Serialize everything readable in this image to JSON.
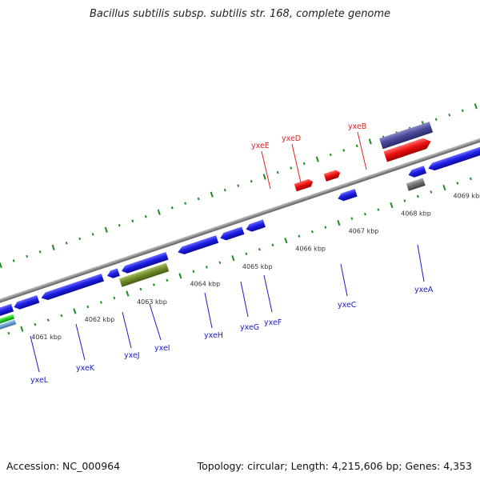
{
  "title": "Bacillus subtilis subsp. subtilis str. 168, complete genome",
  "footer": {
    "accession": "Accession: NC_000964",
    "topology": "Topology: circular; Length: 4,215,606 bp; Genes: 4,353"
  },
  "colors": {
    "backbone": "#8f8f8f",
    "ruler": "#1f8a1f",
    "forward_label": "#e02020",
    "reverse_label": "#1a1acc"
  },
  "ruler_labels": [
    "4061 kbp",
    "4062 kbp",
    "4063 kbp",
    "4064 kbp",
    "4065 kbp",
    "4066 kbp",
    "4067 kbp",
    "4068 kbp",
    "4069 kbp"
  ],
  "gene_labels": {
    "forward": [
      "yxeE",
      "yxeD",
      "yxeB"
    ],
    "reverse": [
      "yxeL",
      "yxeK",
      "yxeJ",
      "yxeI",
      "yxeH",
      "yxeG",
      "yxeF",
      "yxeC",
      "yxeA"
    ]
  },
  "gene_colors": {
    "blue": "#1f1fe6",
    "red": "#ee1111",
    "purple": "#4a4a9a",
    "olive": "#6f8f2a",
    "gray": "#707070",
    "green": "#22cc22",
    "lightblue": "#6a9fd0"
  }
}
